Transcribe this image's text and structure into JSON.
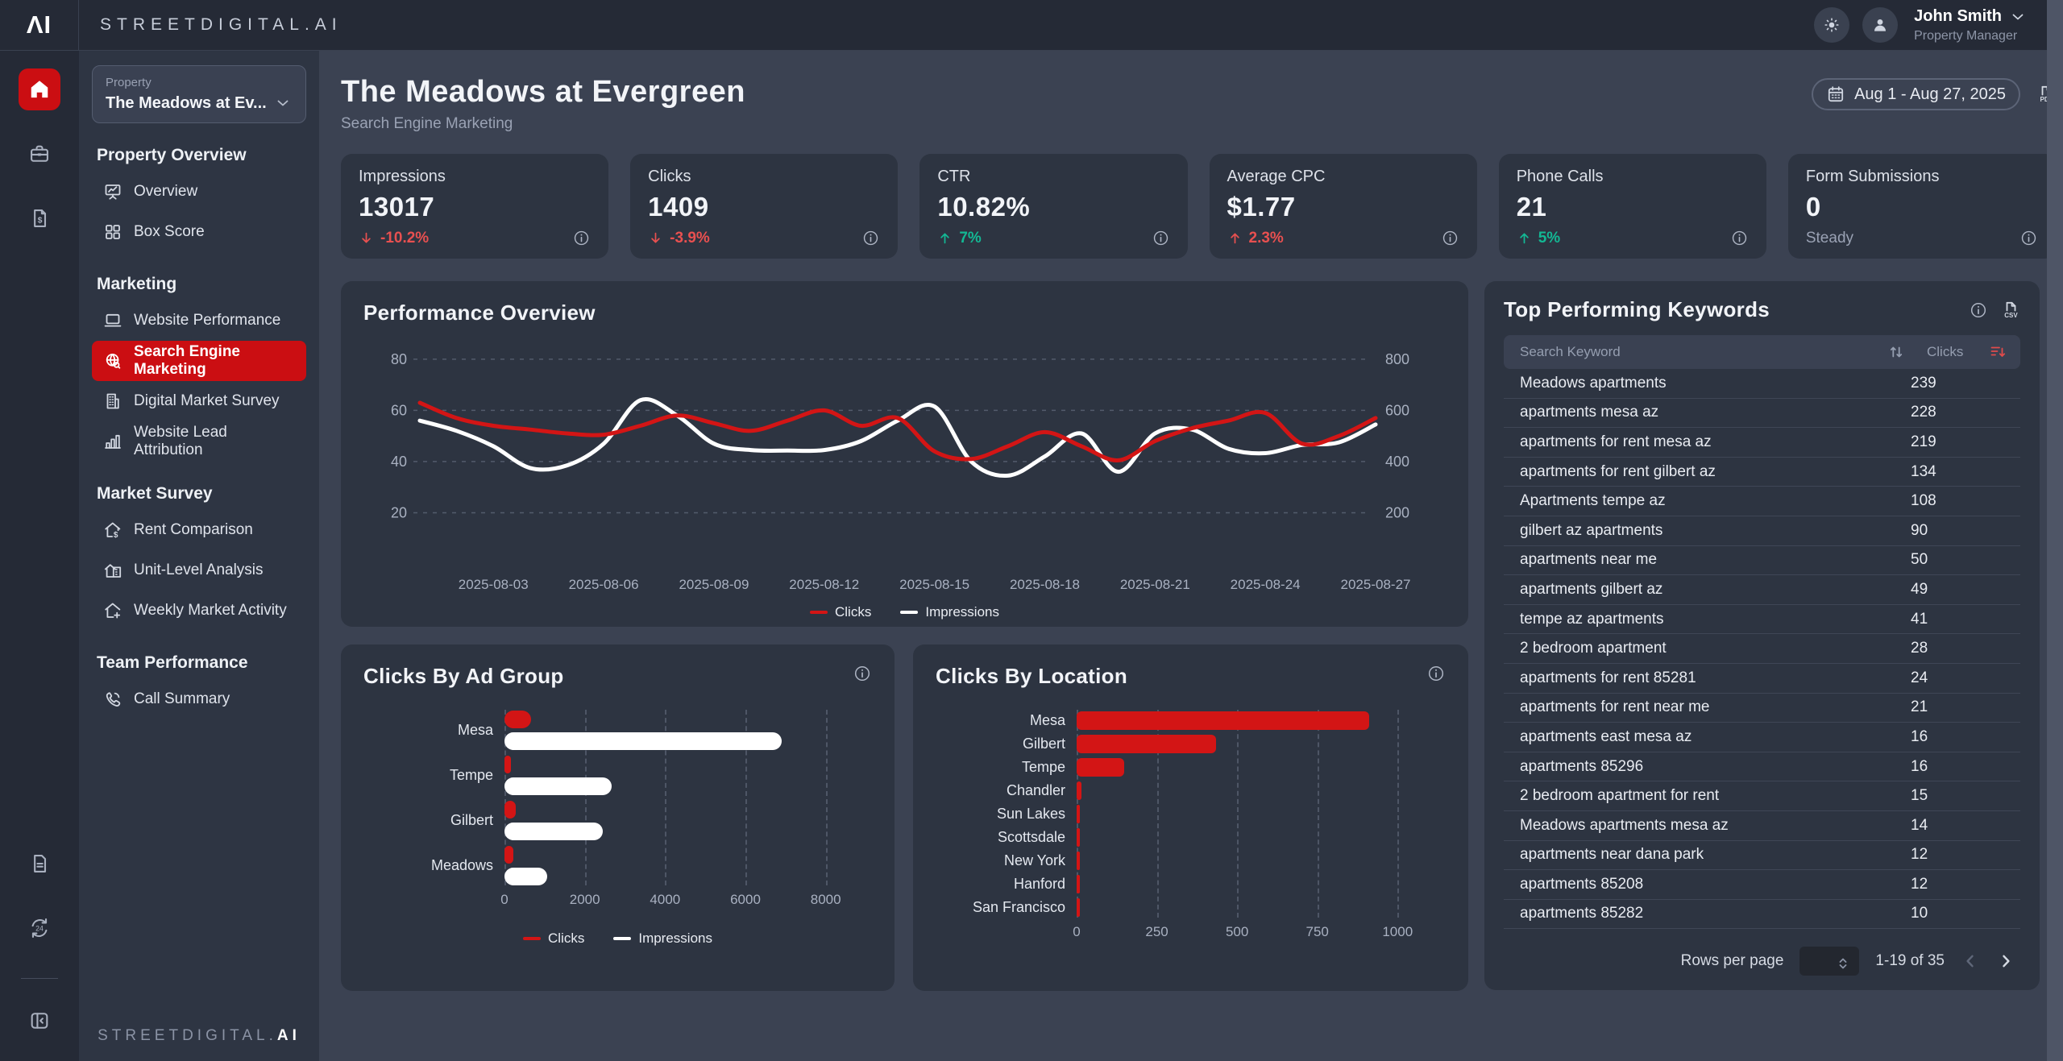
{
  "brand": {
    "mark": "ΛI",
    "wordmark": "STREETDIGITAL.AI",
    "footer_prefix": "STREETDIGITAL.",
    "footer_suffix": "AI"
  },
  "topbar": {
    "user_name": "John Smith",
    "user_role": "Property Manager"
  },
  "rail": {
    "top": [
      "home",
      "briefcase",
      "invoice"
    ],
    "bottom": [
      "document",
      "refresh-24"
    ],
    "footer": "collapse"
  },
  "sidebar": {
    "property_label": "Property",
    "property_value": "The Meadows at Ev...",
    "sections": [
      {
        "heading": "Property Overview",
        "items": [
          {
            "label": "Overview",
            "icon": "overview"
          },
          {
            "label": "Box Score",
            "icon": "box-score"
          }
        ]
      },
      {
        "heading": "Marketing",
        "items": [
          {
            "label": "Website Performance",
            "icon": "website"
          },
          {
            "label": "Search Engine Marketing",
            "icon": "sem",
            "active": true
          },
          {
            "label": "Digital Market Survey",
            "icon": "building"
          },
          {
            "label": "Website Lead Attribution",
            "icon": "chart-bars"
          }
        ]
      },
      {
        "heading": "Market Survey",
        "items": [
          {
            "label": "Rent Comparison",
            "icon": "house-dollar"
          },
          {
            "label": "Unit-Level Analysis",
            "icon": "house-unit"
          },
          {
            "label": "Weekly Market Activity",
            "icon": "house-plus"
          }
        ]
      },
      {
        "heading": "Team Performance",
        "items": [
          {
            "label": "Call Summary",
            "icon": "phone"
          }
        ]
      }
    ]
  },
  "header": {
    "title": "The Meadows at Evergreen",
    "subtitle": "Search Engine Marketing",
    "date_range": "Aug 1 - Aug 27, 2025",
    "export_label": "PDF"
  },
  "kpis": [
    {
      "label": "Impressions",
      "value": "13017",
      "trend": "-10.2%",
      "direction": "down",
      "tone": "negative"
    },
    {
      "label": "Clicks",
      "value": "1409",
      "trend": "-3.9%",
      "direction": "down",
      "tone": "negative"
    },
    {
      "label": "CTR",
      "value": "10.82%",
      "trend": "7%",
      "direction": "up",
      "tone": "positive"
    },
    {
      "label": "Average CPC",
      "value": "$1.77",
      "trend": "2.3%",
      "direction": "up",
      "tone": "negative"
    },
    {
      "label": "Phone Calls",
      "value": "21",
      "trend": "5%",
      "direction": "up",
      "tone": "positive"
    },
    {
      "label": "Form Submissions",
      "value": "0",
      "trend": "Steady",
      "direction": "none",
      "tone": "neutral"
    }
  ],
  "colors": {
    "accent_red": "#cb0e12",
    "line_clicks": "#d31515",
    "line_impressions": "#ffffff",
    "trend_red": "#e85050",
    "trend_green": "#13b894"
  },
  "chart_data": [
    {
      "id": "performance_overview",
      "type": "line",
      "title": "Performance Overview",
      "x_tick_labels": [
        "2025-08-03",
        "2025-08-06",
        "2025-08-09",
        "2025-08-12",
        "2025-08-15",
        "2025-08-18",
        "2025-08-21",
        "2025-08-24",
        "2025-08-27"
      ],
      "x_range": [
        "2025-08-01",
        "2025-08-27"
      ],
      "y_left_ticks": [
        20,
        40,
        60,
        80
      ],
      "y_right_ticks": [
        200,
        400,
        600,
        800
      ],
      "y_left_range": [
        0,
        85
      ],
      "grid": "dashed-horizontal",
      "legend_position": "bottom",
      "series": [
        {
          "name": "Clicks",
          "color": "#d31515",
          "axis": "left",
          "values": [
            63,
            57,
            54,
            52.5,
            51,
            50.5,
            54,
            58,
            55,
            52,
            56,
            60,
            54,
            57,
            44,
            41,
            46,
            51.5,
            46,
            40.5,
            48,
            53,
            56,
            59,
            47,
            50,
            57
          ]
        },
        {
          "name": "Impressions",
          "color": "#ffffff",
          "axis": "right",
          "values": [
            560,
            520,
            460,
            375,
            385,
            470,
            640,
            580,
            470,
            445,
            443,
            445,
            480,
            560,
            615,
            400,
            345,
            420,
            510,
            360,
            510,
            525,
            450,
            433,
            465,
            475,
            545
          ]
        }
      ]
    },
    {
      "id": "clicks_by_ad_group",
      "type": "bar",
      "orientation": "horizontal",
      "title": "Clicks By Ad Group",
      "categories": [
        "Mesa",
        "Tempe",
        "Gilbert",
        "Meadows"
      ],
      "series": [
        {
          "name": "Clicks",
          "color": "#d31515",
          "values": [
            660,
            160,
            280,
            230
          ]
        },
        {
          "name": "Impressions",
          "color": "#ffffff",
          "values": [
            6900,
            2670,
            2440,
            1060
          ]
        }
      ],
      "x_ticks": [
        0,
        2000,
        4000,
        6000,
        8000
      ],
      "x_max": 9150,
      "legend_position": "bottom"
    },
    {
      "id": "clicks_by_location",
      "type": "bar",
      "orientation": "horizontal",
      "title": "Clicks By Location",
      "categories": [
        "Mesa",
        "Gilbert",
        "Tempe",
        "Chandler",
        "Sun Lakes",
        "Scottsdale",
        "New York",
        "Hanford",
        "San Francisco"
      ],
      "series": [
        {
          "name": "Clicks",
          "color": "#d31515",
          "values": [
            912,
            435,
            148,
            15,
            5,
            3,
            2,
            2,
            2
          ]
        }
      ],
      "x_ticks": [
        0,
        250,
        500,
        750,
        1000
      ],
      "x_max": 1150,
      "legend_position": "none"
    }
  ],
  "keywords": {
    "title": "Top Performing Keywords",
    "columns": [
      "Search Keyword",
      "Clicks"
    ],
    "rows": [
      [
        "Meadows apartments",
        239
      ],
      [
        "apartments mesa az",
        228
      ],
      [
        "apartments for rent mesa az",
        219
      ],
      [
        "apartments for rent gilbert az",
        134
      ],
      [
        "Apartments tempe az",
        108
      ],
      [
        "gilbert az apartments",
        90
      ],
      [
        "apartments near me",
        50
      ],
      [
        "apartments gilbert az",
        49
      ],
      [
        "tempe az apartments",
        41
      ],
      [
        "2 bedroom apartment",
        28
      ],
      [
        "apartments for rent 85281",
        24
      ],
      [
        "apartments for rent near me",
        21
      ],
      [
        "apartments east mesa az",
        16
      ],
      [
        "apartments 85296",
        16
      ],
      [
        "2 bedroom apartment for rent",
        15
      ],
      [
        "Meadows apartments mesa az",
        14
      ],
      [
        "apartments near dana park",
        12
      ],
      [
        "apartments 85208",
        12
      ],
      [
        "apartments 85282",
        10
      ]
    ],
    "footer": {
      "rows_per_page_label": "Rows per page",
      "range": "1-19 of 35"
    }
  }
}
